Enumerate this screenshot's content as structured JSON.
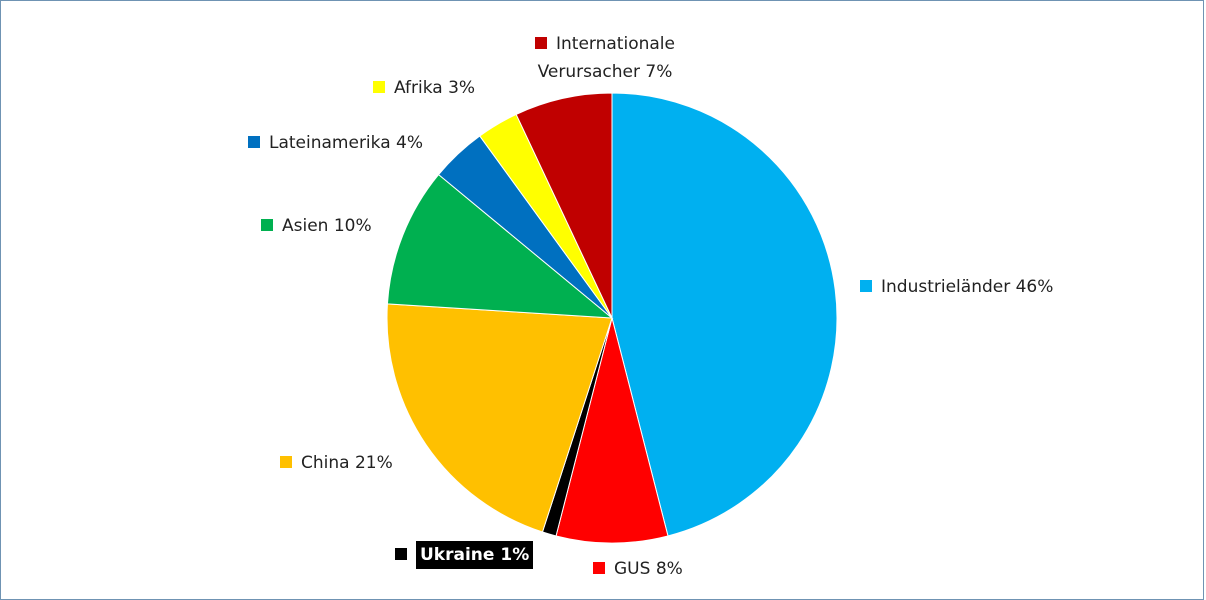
{
  "chart_data": {
    "type": "pie",
    "categories": [
      "Industrieländer",
      "GUS",
      "Ukraine",
      "China",
      "Asien",
      "Lateinamerika",
      "Afrika",
      "Internationale Verursacher"
    ],
    "values": [
      46,
      8,
      1,
      21,
      10,
      4,
      3,
      7
    ],
    "value_labels": [
      "46%",
      "8%",
      "1%",
      "21%",
      "10%",
      "4%",
      "3%",
      "7%"
    ],
    "colors": [
      "#00b0f0",
      "#ff0000",
      "#000000",
      "#ffc000",
      "#00b050",
      "#0070c0",
      "#ffff00",
      "#c00000"
    ]
  }
}
